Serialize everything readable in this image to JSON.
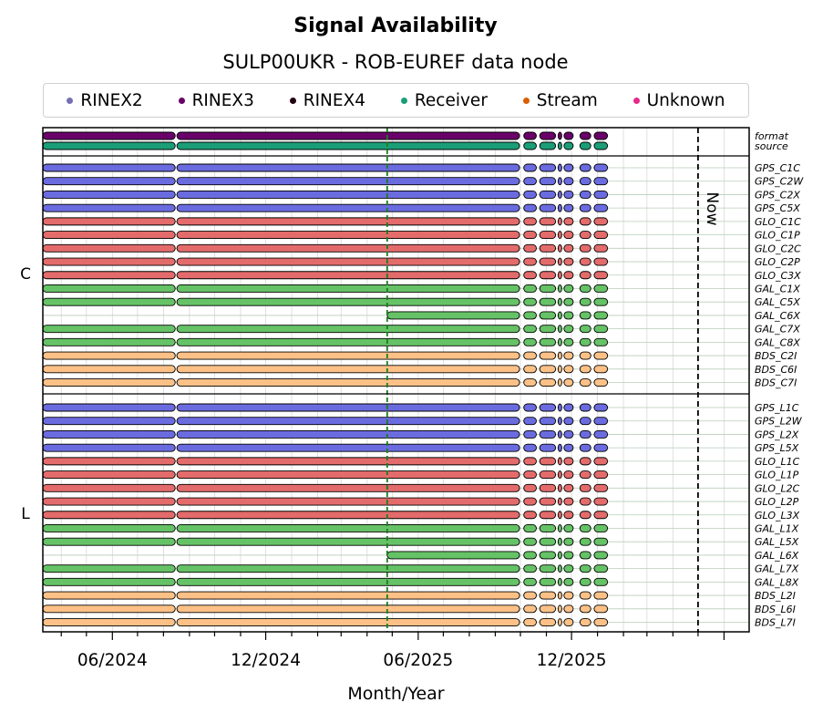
{
  "chart_data": {
    "type": "timeline",
    "title": "Signal Availability",
    "subtitle": "SULP00UKR - ROB-EUREF data node",
    "xlabel": "Month/Year",
    "x_ticks": [
      "06/2024",
      "12/2024",
      "06/2025",
      "12/2025"
    ],
    "x_range": [
      "2024-03-10",
      "2026-07-01"
    ],
    "marker_date": "2025-04-25",
    "now_date": "2026-05-01",
    "now_label": "Now",
    "legend": [
      {
        "name": "RINEX2",
        "color": "#7570b3"
      },
      {
        "name": "RINEX3",
        "color": "#6a006a"
      },
      {
        "name": "RINEX4",
        "color": "#220011"
      },
      {
        "name": "Receiver",
        "color": "#1b9e77"
      },
      {
        "name": "Stream",
        "color": "#d95f02"
      },
      {
        "name": "Unknown",
        "color": "#e7298a"
      }
    ],
    "constellation_colors": {
      "GPS": "#6b6be0",
      "GLO": "#e36b6b",
      "GAL": "#66c266",
      "BDS": "#fdc187"
    },
    "top_rows": [
      {
        "label": "format",
        "color": "#6a006a"
      },
      {
        "label": "source",
        "color": "#1b9e77"
      }
    ],
    "groups": [
      {
        "label": "C",
        "signals": [
          "GPS_C1C",
          "GPS_C2W",
          "GPS_C2X",
          "GPS_C5X",
          "GLO_C1C",
          "GLO_C1P",
          "GLO_C2C",
          "GLO_C2P",
          "GLO_C3X",
          "GAL_C1X",
          "GAL_C5X",
          "GAL_C6X",
          "GAL_C7X",
          "GAL_C8X",
          "BDS_C2I",
          "BDS_C6I",
          "BDS_C7I"
        ]
      },
      {
        "label": "L",
        "signals": [
          "GPS_L1C",
          "GPS_L2W",
          "GPS_L2X",
          "GPS_L5X",
          "GLO_L1C",
          "GLO_L1P",
          "GLO_L2C",
          "GLO_L2P",
          "GLO_L3X",
          "GAL_L1X",
          "GAL_L5X",
          "GAL_L6X",
          "GAL_L7X",
          "GAL_L8X",
          "BDS_L2I",
          "BDS_L6I",
          "BDS_L7I"
        ]
      }
    ],
    "segments_full": [
      [
        "2024-03-10",
        "2024-08-15"
      ],
      [
        "2024-08-17",
        "2025-09-30"
      ],
      [
        "2025-10-05",
        "2025-10-20"
      ],
      [
        "2025-10-24",
        "2025-11-12"
      ],
      [
        "2025-11-15",
        "2025-11-18"
      ],
      [
        "2025-11-22",
        "2025-12-03"
      ],
      [
        "2025-12-11",
        "2025-12-24"
      ],
      [
        "2025-12-28",
        "2026-01-13"
      ]
    ],
    "segments_late": [
      [
        "2025-04-25",
        "2025-09-30"
      ],
      [
        "2025-10-05",
        "2025-10-20"
      ],
      [
        "2025-10-24",
        "2025-11-12"
      ],
      [
        "2025-11-15",
        "2025-11-18"
      ],
      [
        "2025-11-22",
        "2025-12-03"
      ],
      [
        "2025-12-11",
        "2025-12-24"
      ],
      [
        "2025-12-28",
        "2026-01-13"
      ]
    ],
    "late_signals": [
      "GAL_C6X",
      "GAL_L6X"
    ]
  }
}
